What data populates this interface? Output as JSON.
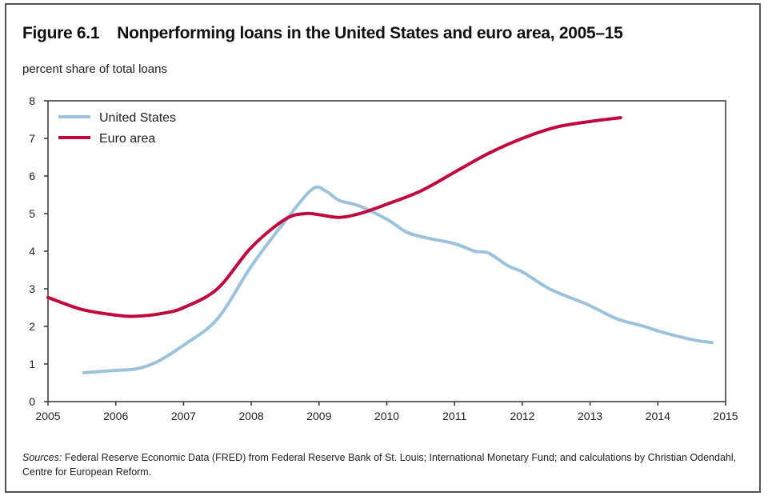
{
  "chart_data": {
    "type": "line",
    "figure_number": "Figure 6.1",
    "title": "Nonperforming loans in the United States and euro area, 2005–15",
    "ylabel": "percent share of total loans",
    "xlabel": "",
    "xlim": [
      2005,
      2015
    ],
    "ylim": [
      0,
      8
    ],
    "xticks": [
      "2005",
      "2006",
      "2007",
      "2008",
      "2009",
      "2010",
      "2011",
      "2012",
      "2013",
      "2014",
      "2015"
    ],
    "yticks": [
      "0",
      "1",
      "2",
      "3",
      "4",
      "5",
      "6",
      "7",
      "8"
    ],
    "grid": false,
    "legend_position": "top-left",
    "series": [
      {
        "name": "United States",
        "color": "#9dc3dc",
        "x": [
          2005.53,
          2006,
          2006.3,
          2006.6,
          2007,
          2007.5,
          2008,
          2008.5,
          2008.9,
          2009.1,
          2009.3,
          2009.6,
          2010,
          2010.3,
          2010.6,
          2011,
          2011.3,
          2011.5,
          2011.8,
          2012,
          2012.4,
          2012.8,
          2013,
          2013.4,
          2013.8,
          2014,
          2014.5,
          2014.8
        ],
        "y": [
          0.77,
          0.83,
          0.87,
          1.05,
          1.5,
          2.2,
          3.6,
          4.8,
          5.65,
          5.6,
          5.35,
          5.2,
          4.85,
          4.5,
          4.35,
          4.2,
          4.0,
          3.95,
          3.6,
          3.45,
          3.0,
          2.7,
          2.55,
          2.2,
          2.0,
          1.88,
          1.65,
          1.57
        ]
      },
      {
        "name": "Euro area",
        "color": "#c0063f",
        "x": [
          2005,
          2005.5,
          2006,
          2006.3,
          2006.7,
          2007,
          2007.5,
          2008,
          2008.5,
          2008.8,
          2009,
          2009.3,
          2009.6,
          2010,
          2010.5,
          2011,
          2011.5,
          2012,
          2012.5,
          2013,
          2013.45
        ],
        "y": [
          2.77,
          2.45,
          2.3,
          2.27,
          2.35,
          2.5,
          3.0,
          4.1,
          4.85,
          5.0,
          4.97,
          4.9,
          5.0,
          5.25,
          5.6,
          6.1,
          6.6,
          7.0,
          7.3,
          7.45,
          7.55
        ]
      }
    ],
    "sources_label": "Sources:",
    "sources_text": "Federal Reserve Economic Data (FRED) from Federal Reserve Bank of St. Louis; International Monetary Fund; and calculations by Christian Odendahl, Centre for European Reform."
  }
}
